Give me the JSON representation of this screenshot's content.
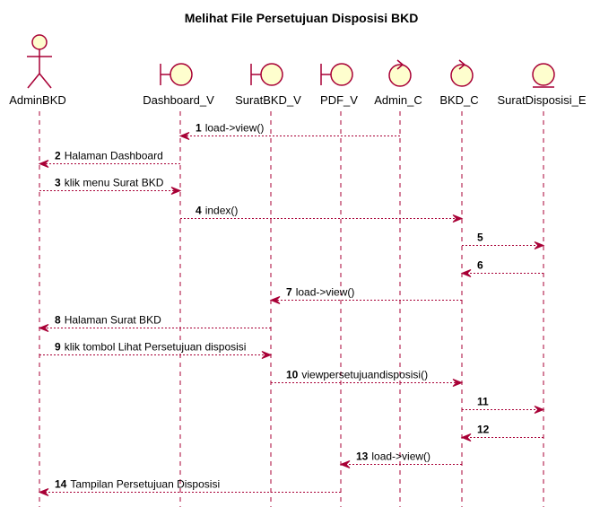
{
  "title": "Melihat File Persetujuan Disposisi BKD",
  "participants": [
    {
      "id": "AdminBKD",
      "label": "AdminBKD",
      "kind": "actor"
    },
    {
      "id": "Dashboard_V",
      "label": "Dashboard_V",
      "kind": "boundary"
    },
    {
      "id": "SuratBKD_V",
      "label": "SuratBKD_V",
      "kind": "boundary"
    },
    {
      "id": "PDF_V",
      "label": "PDF_V",
      "kind": "boundary"
    },
    {
      "id": "Admin_C",
      "label": "Admin_C",
      "kind": "control"
    },
    {
      "id": "BKD_C",
      "label": "BKD_C",
      "kind": "control"
    },
    {
      "id": "SuratDisposisi_E",
      "label": "SuratDisposisi_E",
      "kind": "entity"
    }
  ],
  "messages": [
    {
      "num": "1",
      "text": "load->view()",
      "from": "Admin_C",
      "to": "Dashboard_V"
    },
    {
      "num": "2",
      "text": "Halaman Dashboard",
      "from": "Dashboard_V",
      "to": "AdminBKD"
    },
    {
      "num": "3",
      "text": "klik menu Surat BKD",
      "from": "AdminBKD",
      "to": "Dashboard_V"
    },
    {
      "num": "4",
      "text": "index()",
      "from": "Dashboard_V",
      "to": "BKD_C"
    },
    {
      "num": "5",
      "text": "",
      "from": "BKD_C",
      "to": "SuratDisposisi_E"
    },
    {
      "num": "6",
      "text": "",
      "from": "SuratDisposisi_E",
      "to": "BKD_C"
    },
    {
      "num": "7",
      "text": "load->view()",
      "from": "BKD_C",
      "to": "SuratBKD_V"
    },
    {
      "num": "8",
      "text": "Halaman Surat BKD",
      "from": "SuratBKD_V",
      "to": "AdminBKD"
    },
    {
      "num": "9",
      "text": "klik tombol Lihat Persetujuan disposisi",
      "from": "AdminBKD",
      "to": "SuratBKD_V"
    },
    {
      "num": "10",
      "text": "viewpersetujuandisposisi()",
      "from": "SuratBKD_V",
      "to": "BKD_C"
    },
    {
      "num": "11",
      "text": "",
      "from": "BKD_C",
      "to": "SuratDisposisi_E"
    },
    {
      "num": "12",
      "text": "",
      "from": "SuratDisposisi_E",
      "to": "BKD_C"
    },
    {
      "num": "13",
      "text": "load->view()",
      "from": "BKD_C",
      "to": "PDF_V"
    },
    {
      "num": "14",
      "text": "Tampilan Persetujuan Disposisi",
      "from": "PDF_V",
      "to": "AdminBKD"
    }
  ],
  "colors": {
    "line": "#A80036",
    "fill": "#FEFECE",
    "text": "#000000"
  }
}
